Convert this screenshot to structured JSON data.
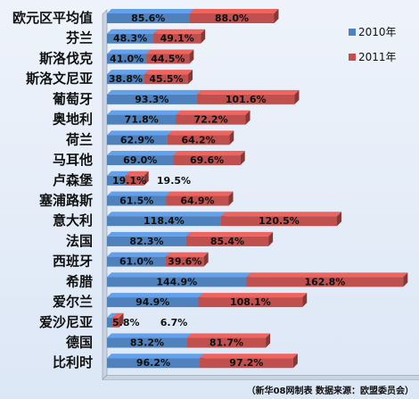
{
  "chart_data": {
    "type": "bar",
    "orientation": "horizontal",
    "categories": [
      "欧元区平均值",
      "芬兰",
      "斯洛伐克",
      "斯洛文尼亚",
      "葡萄牙",
      "奥地利",
      "荷兰",
      "马耳他",
      "卢森堡",
      "塞浦路斯",
      "意大利",
      "法国",
      "西班牙",
      "希腊",
      "爱尔兰",
      "爱沙尼亚",
      "德国",
      "比利时"
    ],
    "series": [
      {
        "name": "2010年",
        "color": "#4f81bd",
        "values": [
          85.6,
          48.3,
          41.0,
          38.8,
          93.3,
          71.8,
          62.9,
          69.0,
          19.1,
          61.5,
          118.4,
          82.3,
          61.0,
          144.9,
          94.9,
          5.8,
          83.2,
          96.2
        ],
        "labels": [
          "85.6%",
          "48.3%",
          "41.0%",
          "38.8%",
          "93.3%",
          "71.8%",
          "62.9%",
          "69.0%",
          "19.1%",
          "61.5%",
          "118.4%",
          "82.3%",
          "61.0%",
          "144.9%",
          "94.9%",
          "5.8%",
          "83.2%",
          "96.2%"
        ]
      },
      {
        "name": "2011年",
        "color": "#c0504d",
        "values": [
          88.0,
          49.1,
          44.5,
          45.5,
          101.6,
          72.2,
          64.2,
          69.6,
          19.5,
          64.9,
          120.5,
          85.4,
          39.6,
          162.8,
          108.1,
          6.7,
          81.7,
          97.2
        ],
        "labels": [
          "88.0%",
          "49.1%",
          "44.5%",
          "45.5%",
          "101.6%",
          "72.2%",
          "64.2%",
          "69.6%",
          "19.5%",
          "64.9%",
          "120.5%",
          "85.4%",
          "39.6%",
          "162.8%",
          "108.1%",
          "6.7%",
          "81.7%",
          "97.2%"
        ]
      }
    ],
    "stacked": true,
    "legend_position": "right",
    "grid": false
  },
  "source_note": "（新华08网制表 数据来源：欧盟委员会）"
}
